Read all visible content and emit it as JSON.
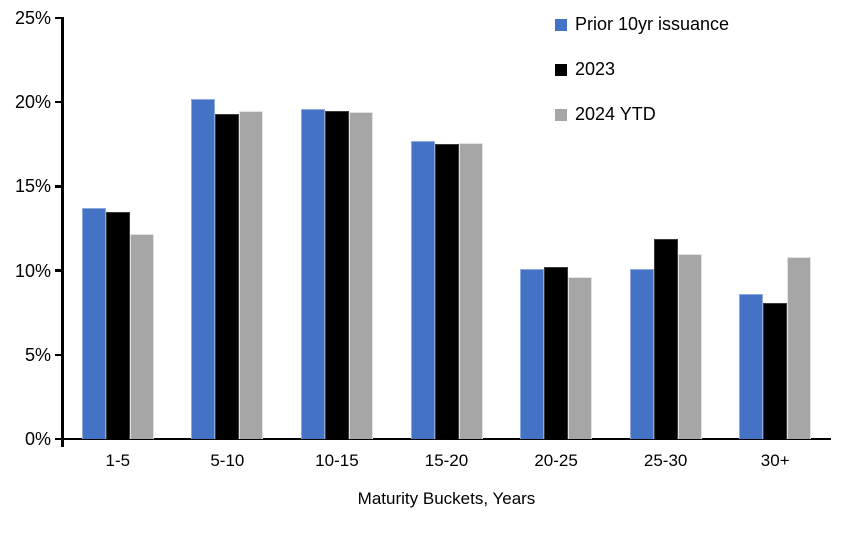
{
  "chart_data": {
    "type": "bar",
    "title": "",
    "xlabel": "Maturity Buckets, Years",
    "ylabel": "",
    "categories": [
      "1-5",
      "5-10",
      "10-15",
      "15-20",
      "20-25",
      "25-30",
      "30+"
    ],
    "series": [
      {
        "name": "Prior 10yr issuance",
        "color": "#4472C4",
        "border_color": "#8FA8DE",
        "values": [
          13.7,
          20.2,
          19.6,
          17.7,
          10.1,
          10.1,
          8.6
        ]
      },
      {
        "name": "2023",
        "color": "#000000",
        "border_color": "#3A3A3A",
        "values": [
          13.5,
          19.3,
          19.5,
          17.5,
          10.2,
          11.9,
          8.1
        ]
      },
      {
        "name": "2024 YTD",
        "color": "#A6A6A6",
        "border_color": "#E2E2E2",
        "values": [
          12.2,
          19.5,
          19.4,
          17.6,
          9.6,
          11.0,
          10.8
        ]
      }
    ],
    "ylim": [
      0,
      25
    ],
    "yticks": [
      "0%",
      "5%",
      "10%",
      "15%",
      "20%",
      "25%"
    ],
    "ytick_values": [
      0,
      5,
      10,
      15,
      20,
      25
    ],
    "grid": false,
    "legend_position": "top-right",
    "axis_color": "#000000",
    "background_color": "#FFFFFF"
  }
}
